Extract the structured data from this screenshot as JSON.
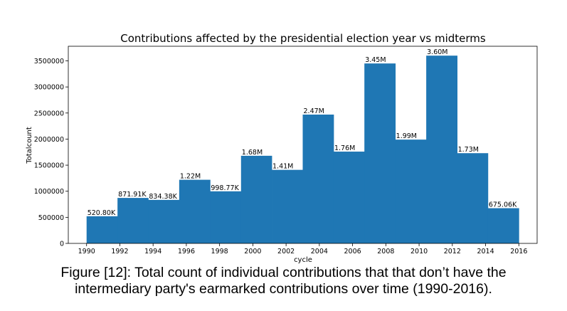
{
  "chart_data": {
    "type": "bar",
    "title": "Contributions affected by the presidential election year vs midterms",
    "xlabel": "cycle",
    "ylabel": "Totalcount",
    "xlim": [
      1988.9,
      2017.1
    ],
    "ylim": [
      0,
      3780000
    ],
    "x_ticks": [
      "1990",
      "1992",
      "1994",
      "1996",
      "1998",
      "2000",
      "2002",
      "2004",
      "2006",
      "2008",
      "2010",
      "2012",
      "2014",
      "2016"
    ],
    "y_ticks": [
      "0",
      "500000",
      "1000000",
      "1500000",
      "2000000",
      "2500000",
      "3000000",
      "3500000"
    ],
    "bars": [
      {
        "x0": 1990.0,
        "x1": 1991.86,
        "value": 520800,
        "label": "520.80K"
      },
      {
        "x0": 1991.86,
        "x1": 1993.71,
        "value": 871910,
        "label": "871.91K"
      },
      {
        "x0": 1993.71,
        "x1": 1995.57,
        "value": 834380,
        "label": "834.38K"
      },
      {
        "x0": 1995.57,
        "x1": 1997.43,
        "value": 1220000,
        "label": "1.22M"
      },
      {
        "x0": 1997.43,
        "x1": 1999.29,
        "value": 998770,
        "label": "998.77K"
      },
      {
        "x0": 1999.29,
        "x1": 2001.14,
        "value": 1680000,
        "label": "1.68M"
      },
      {
        "x0": 2001.14,
        "x1": 2003.0,
        "value": 1410000,
        "label": "1.41M"
      },
      {
        "x0": 2003.0,
        "x1": 2004.86,
        "value": 2470000,
        "label": "2.47M"
      },
      {
        "x0": 2004.86,
        "x1": 2006.71,
        "value": 1760000,
        "label": "1.76M"
      },
      {
        "x0": 2006.71,
        "x1": 2008.57,
        "value": 3450000,
        "label": "3.45M"
      },
      {
        "x0": 2008.57,
        "x1": 2010.43,
        "value": 1990000,
        "label": "1.99M"
      },
      {
        "x0": 2010.43,
        "x1": 2012.29,
        "value": 3600000,
        "label": "3.60M"
      },
      {
        "x0": 2012.29,
        "x1": 2014.14,
        "value": 1730000,
        "label": "1.73M"
      },
      {
        "x0": 2014.14,
        "x1": 2016.0,
        "value": 675060,
        "label": "675.06K"
      }
    ],
    "bar_color": "#1f77b4",
    "grid": false,
    "legend": "none"
  },
  "caption": {
    "line1": "Figure [12]: Total count of individual contributions that that don’t have the",
    "line2": "intermediary party's earmarked contributions over time (1990-2016)."
  }
}
